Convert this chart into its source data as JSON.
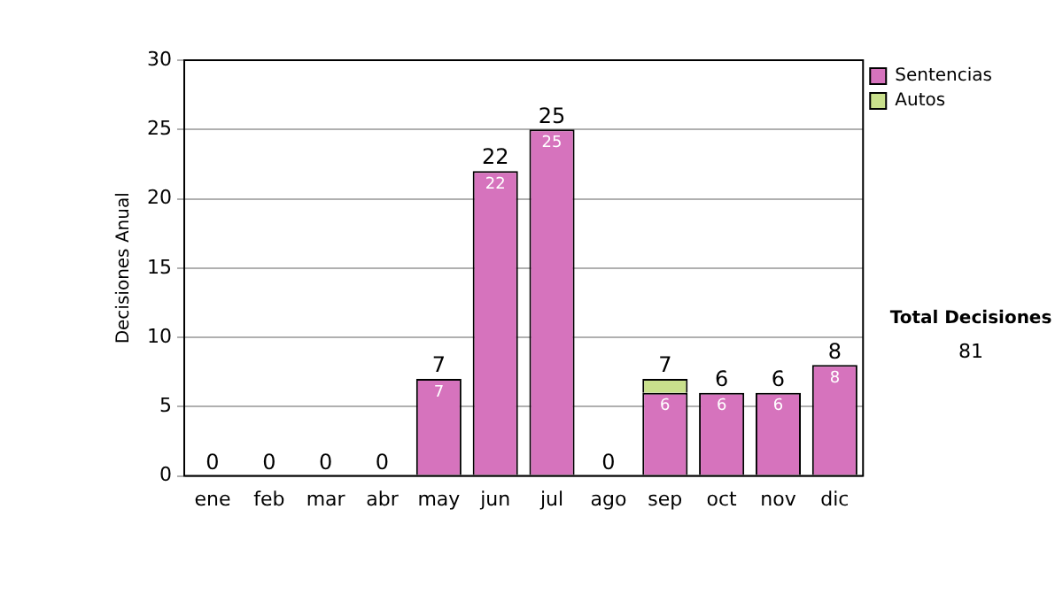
{
  "chart_data": {
    "type": "bar",
    "stacked": true,
    "ylabel": "Decisiones Anual",
    "categories": [
      "ene",
      "feb",
      "mar",
      "abr",
      "may",
      "jun",
      "jul",
      "ago",
      "sep",
      "oct",
      "nov",
      "dic"
    ],
    "series": [
      {
        "name": "Sentencias",
        "color": "#d673bd",
        "values": [
          0,
          0,
          0,
          0,
          7,
          22,
          25,
          0,
          6,
          6,
          6,
          8
        ],
        "value_labels": [
          null,
          null,
          null,
          null,
          "7",
          "22",
          "25",
          null,
          "6",
          "6",
          "6",
          "8"
        ]
      },
      {
        "name": "Autos",
        "color": "#c9e08c",
        "values": [
          0,
          0,
          0,
          0,
          0,
          0,
          0,
          0,
          1,
          0,
          0,
          0
        ]
      }
    ],
    "totals": [
      "0",
      "0",
      "0",
      "0",
      "7",
      "22",
      "25",
      "0",
      "7",
      "6",
      "6",
      "8"
    ],
    "ylim": [
      0,
      30
    ],
    "yticks": [
      0,
      5,
      10,
      15,
      20,
      25,
      30
    ],
    "grid": "y",
    "legend": "right",
    "annotations": [
      "Total Decisiones",
      "81"
    ]
  }
}
